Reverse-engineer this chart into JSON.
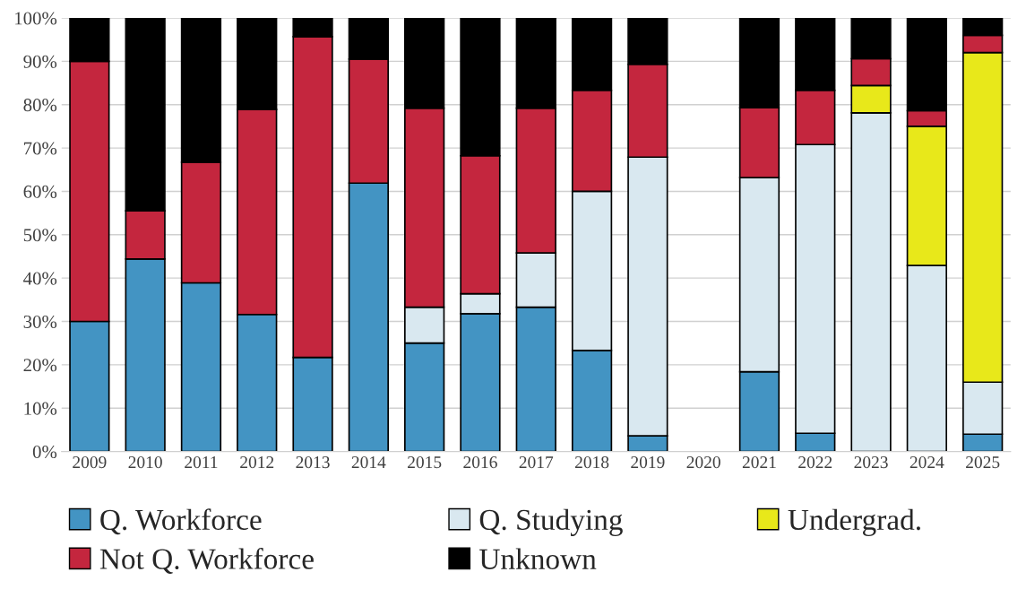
{
  "chart_data": {
    "type": "bar",
    "stacked": true,
    "categories": [
      "2009",
      "2010",
      "2011",
      "2012",
      "2013",
      "2014",
      "2015",
      "2016",
      "2017",
      "2018",
      "2019",
      "2020",
      "2021",
      "2022",
      "2023",
      "2024",
      "2025"
    ],
    "series": [
      {
        "name": "Q. Workforce",
        "color": "#4394c3",
        "values": [
          30,
          44.4,
          38.9,
          31.6,
          21.7,
          61.9,
          25,
          31.8,
          33.3,
          23.3,
          3.6,
          null,
          18.4,
          4.2,
          0,
          0,
          4
        ]
      },
      {
        "name": "Q. Studying",
        "color": "#d9e8f0",
        "values": [
          0,
          0,
          0,
          0,
          0,
          0,
          8.3,
          4.6,
          12.5,
          36.7,
          64.3,
          null,
          44.8,
          66.6,
          78.1,
          42.9,
          12
        ]
      },
      {
        "name": "Undergrad.",
        "color": "#e8e81a",
        "values": [
          0,
          0,
          0,
          0,
          0,
          0,
          0,
          0,
          0,
          0,
          0,
          null,
          0,
          0,
          6.3,
          32.1,
          76
        ]
      },
      {
        "name": "Not Q. Workforce",
        "color": "#c4263e",
        "values": [
          60,
          11.1,
          27.8,
          47.3,
          74,
          28.6,
          45.9,
          31.8,
          33.4,
          23.3,
          21.4,
          null,
          16.1,
          12.5,
          6.2,
          3.6,
          4
        ]
      },
      {
        "name": "Unknown",
        "color": "#000000",
        "values": [
          10,
          44.5,
          33.3,
          21.1,
          4.3,
          9.5,
          20.8,
          31.8,
          20.8,
          16.7,
          10.7,
          null,
          20.7,
          16.7,
          9.4,
          21.4,
          4
        ]
      }
    ],
    "ylim": [
      0,
      100
    ],
    "yticks": [
      {
        "value": 0,
        "label": "0%"
      },
      {
        "value": 10,
        "label": "10%"
      },
      {
        "value": 20,
        "label": "20%"
      },
      {
        "value": 30,
        "label": "30%"
      },
      {
        "value": 40,
        "label": "40%"
      },
      {
        "value": 50,
        "label": "50%"
      },
      {
        "value": 60,
        "label": "60%"
      },
      {
        "value": 70,
        "label": "70%"
      },
      {
        "value": 80,
        "label": "80%"
      },
      {
        "value": 90,
        "label": "90%"
      },
      {
        "value": 100,
        "label": "100%"
      }
    ],
    "grid": "y",
    "legend": "bottom"
  }
}
